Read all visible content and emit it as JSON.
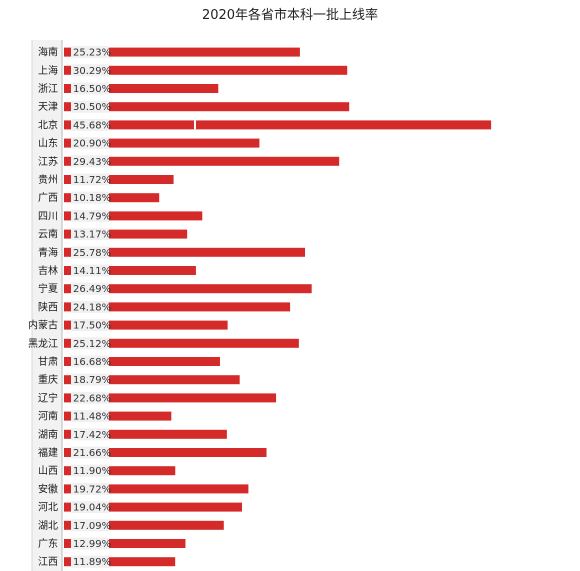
{
  "chart_data": {
    "type": "bar",
    "orientation": "horizontal",
    "title": "2020年各省市本科一批上线率",
    "categories": [
      "海南",
      "上海",
      "浙江",
      "天津",
      "北京",
      "山东",
      "江苏",
      "贵州",
      "广西",
      "四川",
      "云南",
      "青海",
      "吉林",
      "宁夏",
      "陕西",
      "内蒙古",
      "黑龙江",
      "甘肃",
      "重庆",
      "辽宁",
      "河南",
      "湖南",
      "福建",
      "山西",
      "安徽",
      "河北",
      "湖北",
      "广东",
      "江西"
    ],
    "value_labels": [
      "25.23%",
      "30.29%",
      "16.50%",
      "30.50%",
      "45.68%",
      "20.90%",
      "29.43%",
      "11.72%",
      "10.18%",
      "14.79%",
      "13.17%",
      "25.78%",
      "14.11%",
      "26.49%",
      "24.18%",
      "17.50%",
      "25.12%",
      "16.68%",
      "18.79%",
      "22.68%",
      "11.48%",
      "17.42%",
      "21.66%",
      "11.90%",
      "19.72%",
      "19.04%",
      "17.09%",
      "12.99%",
      "11.89%"
    ],
    "values": [
      25.23,
      30.29,
      16.5,
      30.5,
      45.68,
      20.9,
      29.43,
      11.72,
      10.18,
      14.79,
      13.17,
      25.78,
      14.11,
      26.49,
      24.18,
      17.5,
      25.12,
      16.68,
      18.79,
      22.68,
      11.48,
      17.42,
      21.66,
      11.9,
      19.72,
      19.04,
      17.09,
      12.99,
      11.89
    ],
    "bar_color": "#d42a2a",
    "label_bg_color": "#f0f0f0",
    "grid": false,
    "legend": "none"
  }
}
